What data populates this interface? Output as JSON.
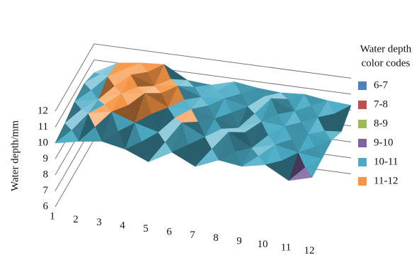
{
  "chart_data": {
    "type": "surface",
    "y_label": "Water depth/mm",
    "categories": [
      "1",
      "2",
      "3",
      "4",
      "5",
      "6",
      "7",
      "8",
      "9",
      "10",
      "11",
      "12"
    ],
    "ylim": [
      6,
      12
    ],
    "yticks": [
      6,
      7,
      8,
      9,
      10,
      11,
      12
    ],
    "z": [
      [
        10,
        10.3,
        10.5,
        10.2,
        9.6,
        10.4,
        9.7,
        10.3,
        10.1,
        10.4,
        9.6,
        10
      ],
      [
        10.2,
        11,
        11.3,
        10.8,
        10.4,
        11.2,
        10.5,
        11,
        10.2,
        10.6,
        10.3,
        10.1
      ],
      [
        10.5,
        10.8,
        11.4,
        11.6,
        10.9,
        11,
        10.6,
        10.2,
        10.8,
        10.7,
        10.4,
        10.2
      ],
      [
        10.6,
        11.2,
        11.5,
        11,
        11.2,
        10.7,
        10.8,
        10.5,
        11.2,
        10.6,
        10.4,
        9.7
      ],
      [
        10.2,
        11,
        11.2,
        11.3,
        10.5,
        10.4,
        10.8,
        10.6,
        10.5,
        10.6,
        10.4,
        10.3
      ]
    ],
    "legend": {
      "title": [
        "Water depth",
        "color codes"
      ],
      "items": [
        {
          "label": "6-7",
          "color": "#4f81bd",
          "min": 6,
          "max": 7
        },
        {
          "label": "7-8",
          "color": "#c0504d",
          "min": 7,
          "max": 8
        },
        {
          "label": "8-9",
          "color": "#9bbb59",
          "min": 8,
          "max": 9
        },
        {
          "label": "9-10",
          "color": "#8064a2",
          "min": 9,
          "max": 10
        },
        {
          "label": "10-11",
          "color": "#4bacc6",
          "min": 10,
          "max": 11
        },
        {
          "label": "11-12",
          "color": "#f79646",
          "min": 11,
          "max": 12
        }
      ]
    }
  }
}
